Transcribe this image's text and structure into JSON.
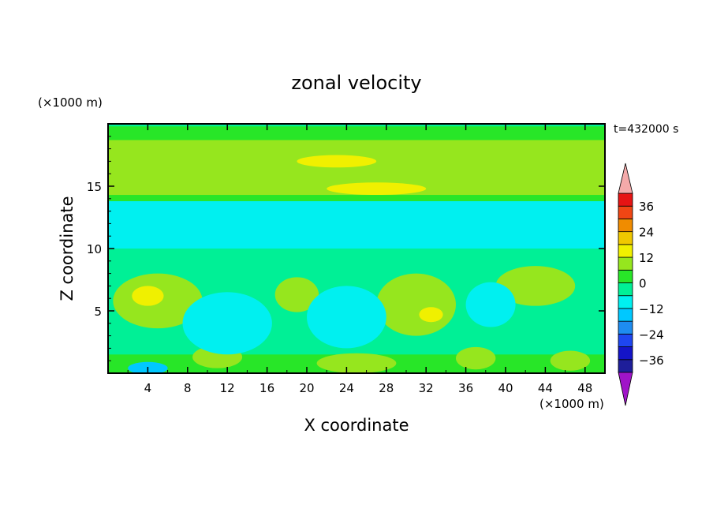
{
  "chart_data": {
    "type": "heatmap",
    "title": "zonal velocity",
    "xlabel": "X coordinate",
    "ylabel": "Z coordinate",
    "x_unit": "(×1000 m)",
    "y_unit": "(×1000 m)",
    "time_label": "t=432000 s",
    "xlim": [
      0,
      50
    ],
    "ylim": [
      0,
      20
    ],
    "x_ticks": [
      4,
      8,
      12,
      16,
      20,
      24,
      28,
      32,
      36,
      40,
      44,
      48
    ],
    "y_ticks": [
      5,
      10,
      15
    ],
    "colorbar": {
      "levels": [
        -42,
        -36,
        -30,
        -24,
        -18,
        -12,
        -6,
        0,
        6,
        12,
        18,
        24,
        30,
        36,
        42
      ],
      "colors": [
        "#5a14a0",
        "#1e1e9a",
        "#1414c8",
        "#1e46f0",
        "#1e8cf0",
        "#00c8ff",
        "#00f0f0",
        "#00f096",
        "#28e628",
        "#96e61e",
        "#f0f000",
        "#f0c800",
        "#f08c00",
        "#f04614",
        "#e61414",
        "#f0a0a0"
      ],
      "under_color": "#a014c8",
      "over_color": "#f4aaaa",
      "tick_labels": [
        {
          "value": -36,
          "label": "−36"
        },
        {
          "value": -24,
          "label": "−24"
        },
        {
          "value": -12,
          "label": "−12"
        },
        {
          "value": 0,
          "label": "0"
        },
        {
          "value": 12,
          "label": "12"
        },
        {
          "value": 24,
          "label": "24"
        },
        {
          "value": 36,
          "label": "36"
        }
      ]
    },
    "field_regions": [
      {
        "desc": "background",
        "value": -3
      },
      {
        "shape": "band",
        "z": [
          0,
          1.5
        ],
        "value": 2
      },
      {
        "shape": "band",
        "z": [
          13.5,
          19.8
        ],
        "value": 3
      },
      {
        "shape": "band",
        "z": [
          14.3,
          18.7
        ],
        "value": 8
      },
      {
        "shape": "band",
        "z": [
          10.0,
          13.8
        ],
        "value": -9
      },
      {
        "shape": "band",
        "z": [
          18.8,
          19.3
        ],
        "value": 2
      },
      {
        "shape": "blob",
        "x": 5.0,
        "z": 5.8,
        "rx": 4.5,
        "rz": 2.2,
        "value": 8
      },
      {
        "shape": "blob",
        "x": 4.0,
        "z": 6.2,
        "rx": 1.6,
        "rz": 0.8,
        "value": 13
      },
      {
        "shape": "blob",
        "x": 19.0,
        "z": 6.3,
        "rx": 2.2,
        "rz": 1.4,
        "value": 8
      },
      {
        "shape": "blob",
        "x": 31.0,
        "z": 5.5,
        "rx": 4.0,
        "rz": 2.5,
        "value": 8
      },
      {
        "shape": "blob",
        "x": 32.5,
        "z": 4.7,
        "rx": 1.2,
        "rz": 0.6,
        "value": 13
      },
      {
        "shape": "blob",
        "x": 43.0,
        "z": 7.0,
        "rx": 4.0,
        "rz": 1.6,
        "value": 8
      },
      {
        "shape": "blob",
        "x": 25.0,
        "z": 0.8,
        "rx": 4.0,
        "rz": 0.8,
        "value": 9
      },
      {
        "shape": "blob",
        "x": 11.0,
        "z": 1.3,
        "rx": 2.5,
        "rz": 0.9,
        "value": 8
      },
      {
        "shape": "blob",
        "x": 37.0,
        "z": 1.2,
        "rx": 2.0,
        "rz": 0.9,
        "value": 8
      },
      {
        "shape": "blob",
        "x": 46.5,
        "z": 1.0,
        "rx": 2.0,
        "rz": 0.8,
        "value": 8
      },
      {
        "shape": "blob",
        "x": 38.5,
        "z": 5.5,
        "rx": 2.5,
        "rz": 1.8,
        "value": -9
      },
      {
        "shape": "blob",
        "x": 24.0,
        "z": 4.5,
        "rx": 4.0,
        "rz": 2.5,
        "value": -9
      },
      {
        "shape": "blob",
        "x": 12.0,
        "z": 4.0,
        "rx": 4.5,
        "rz": 2.5,
        "value": -9
      },
      {
        "shape": "blob",
        "x": 4.0,
        "z": 0.4,
        "rx": 2.0,
        "rz": 0.5,
        "value": -13
      },
      {
        "shape": "blob",
        "x": 23.0,
        "z": 17.0,
        "rx": 4.0,
        "rz": 0.5,
        "value": 13
      },
      {
        "shape": "blob",
        "x": 27.0,
        "z": 14.8,
        "rx": 5.0,
        "rz": 0.5,
        "value": 13
      }
    ]
  }
}
